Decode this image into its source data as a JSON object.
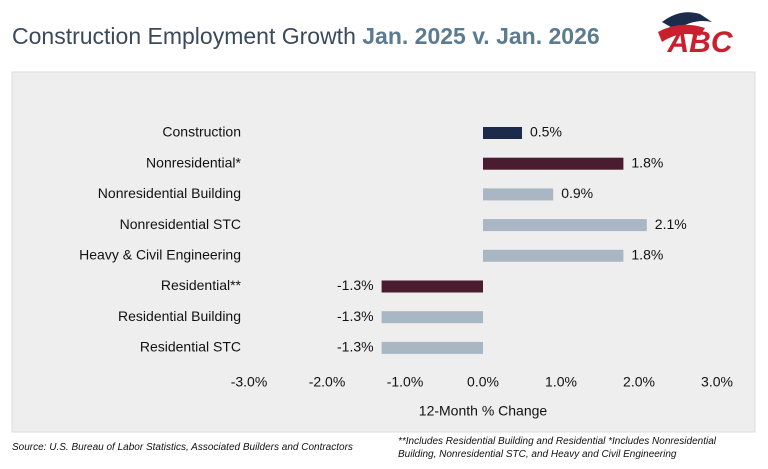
{
  "logo": "ABC",
  "chart_data": {
    "type": "bar",
    "orientation": "horizontal",
    "title": "Construction Employment Growth",
    "title_period": "Jan. 2025 v. Jan. 2026",
    "categories": [
      "Construction",
      "Nonresidential*",
      "Nonresidential Building",
      "Nonresidential STC",
      "Heavy & Civil Engineering",
      "Residential**",
      "Residential Building",
      "Residential STC"
    ],
    "values": [
      0.5,
      1.8,
      0.9,
      2.1,
      1.8,
      -1.3,
      -1.3,
      -1.3
    ],
    "value_labels": [
      "0.5%",
      "1.8%",
      "0.9%",
      "2.1%",
      "1.8%",
      "-1.3%",
      "-1.3%",
      "-1.3%"
    ],
    "colors": [
      "#1c2b4c",
      "#4b1b2e",
      "#a8b7c3",
      "#a8b7c3",
      "#a8b7c3",
      "#4b1b2e",
      "#a8b7c3",
      "#a8b7c3"
    ],
    "xlim": [
      -3,
      3
    ],
    "xticks": [
      {
        "value": -3,
        "label": "-3.0%"
      },
      {
        "value": -2,
        "label": "-2.0%"
      },
      {
        "value": -1,
        "label": "-1.0%"
      },
      {
        "value": 0,
        "label": "0.0%"
      },
      {
        "value": 1,
        "label": "1.0%"
      },
      {
        "value": 2,
        "label": "2.0%"
      },
      {
        "value": 3,
        "label": "3.0%"
      }
    ],
    "xlabel": "12-Month % Change",
    "source": "Source: U.S. Bureau of Labor Statistics, Associated Builders and Contractors",
    "note": "**Includes Residential Building and Residential *Includes Nonresidential Building, Nonresidential STC, and Heavy and Civil Engineering"
  }
}
